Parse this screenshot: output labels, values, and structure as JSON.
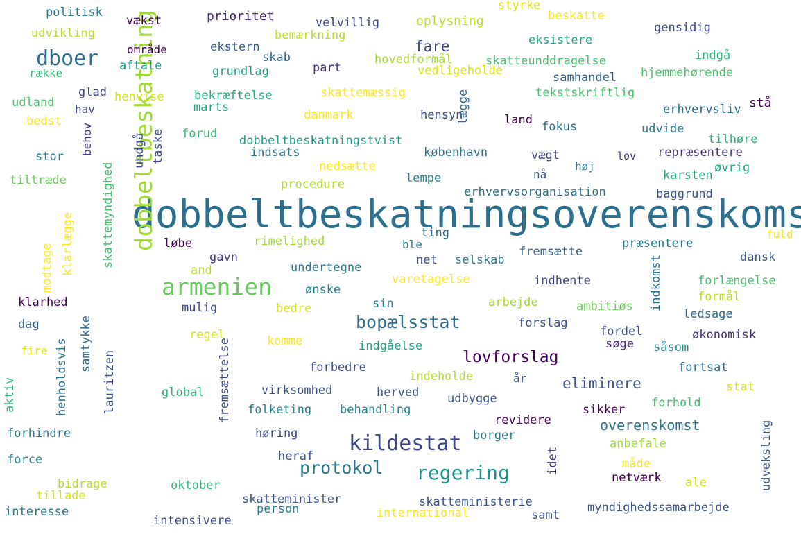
{
  "words": [
    {
      "text": "dobbeltbeskatningsoverenskomst",
      "color": "#2c6f8e"
    },
    {
      "text": "dobbeltbeskatning",
      "color": "#a2da37"
    },
    {
      "text": "armenien",
      "color": "#67cc5c"
    },
    {
      "text": "kildestat",
      "color": "#3f4889"
    },
    {
      "text": "bopælsstat",
      "color": "#2f6c8e"
    },
    {
      "text": "regering",
      "color": "#21918c"
    },
    {
      "text": "protokol",
      "color": "#2a788e"
    },
    {
      "text": "lovforslag",
      "color": "#440154"
    },
    {
      "text": "dboer",
      "color": "#2d708e"
    },
    {
      "text": "eliminere",
      "color": "#3b528b"
    },
    {
      "text": "overenskomst",
      "color": "#2c728e"
    },
    {
      "text": "fare",
      "color": "#3f4889"
    },
    {
      "text": "politisk",
      "color": "#2a788e"
    },
    {
      "text": "vækst",
      "color": "#440154"
    },
    {
      "text": "prioritet",
      "color": "#482878"
    },
    {
      "text": "velvillig",
      "color": "#3e4a89"
    },
    {
      "text": "oplysning",
      "color": "#b5de2b"
    },
    {
      "text": "styrke",
      "color": "#dde318"
    },
    {
      "text": "beskatte",
      "color": "#fde725"
    },
    {
      "text": "udvikling",
      "color": "#b5de2b"
    },
    {
      "text": "bemærkning",
      "color": "#bddf26"
    },
    {
      "text": "eksistere",
      "color": "#21a685"
    },
    {
      "text": "gensidig",
      "color": "#3e4989"
    },
    {
      "text": "område",
      "color": "#440154"
    },
    {
      "text": "ekstern",
      "color": "#365c8d"
    },
    {
      "text": "hovedformål",
      "color": "#a5db36"
    },
    {
      "text": "skatteunddragelse",
      "color": "#4ac16d"
    },
    {
      "text": "indgå",
      "color": "#35b779"
    },
    {
      "text": "række",
      "color": "#3aba76"
    },
    {
      "text": "aftale",
      "color": "#1f9e89"
    },
    {
      "text": "skab",
      "color": "#31688e"
    },
    {
      "text": "part",
      "color": "#46327e"
    },
    {
      "text": "vedligeholde",
      "color": "#dde318"
    },
    {
      "text": "samhandel",
      "color": "#355f8d"
    },
    {
      "text": "hjemmehørende",
      "color": "#4ac16d"
    },
    {
      "text": "grundlag",
      "color": "#1fa088"
    },
    {
      "text": "glad",
      "color": "#414487"
    },
    {
      "text": "henvise",
      "color": "#d8e219"
    },
    {
      "text": "bekræftelse",
      "color": "#27ad81"
    },
    {
      "text": "skattemæssig",
      "color": "#fde725"
    },
    {
      "text": "tekstskriftlig",
      "color": "#4ac16d"
    },
    {
      "text": "udland",
      "color": "#50c46a"
    },
    {
      "text": "hav",
      "color": "#3f4788"
    },
    {
      "text": "marts",
      "color": "#21a685"
    },
    {
      "text": "danmark",
      "color": "#fde725"
    },
    {
      "text": "hensyn",
      "color": "#3e4a89"
    },
    {
      "text": "erhvervsliv",
      "color": "#2e6e8e"
    },
    {
      "text": "stå",
      "color": "#440154"
    },
    {
      "text": "bedst",
      "color": "#fde725"
    },
    {
      "text": "lægge",
      "color": "#31688e"
    },
    {
      "text": "land",
      "color": "#440154"
    },
    {
      "text": "fokus",
      "color": "#2c728e"
    },
    {
      "text": "forud",
      "color": "#3aba76"
    },
    {
      "text": "udvide",
      "color": "#2a788e"
    },
    {
      "text": "dobbeltbeskatningstvist",
      "color": "#1f9e89"
    },
    {
      "text": "tilhøre",
      "color": "#26ad81"
    },
    {
      "text": "indsats",
      "color": "#2e6e8e"
    },
    {
      "text": "københavn",
      "color": "#2c728e"
    },
    {
      "text": "vægt",
      "color": "#414487"
    },
    {
      "text": "lov",
      "color": "#443a83"
    },
    {
      "text": "repræsentere",
      "color": "#45337d"
    },
    {
      "text": "stor",
      "color": "#26818e"
    },
    {
      "text": "nedsætte",
      "color": "#fde725"
    },
    {
      "text": "høj",
      "color": "#2c728e"
    },
    {
      "text": "behov",
      "color": "#443a83"
    },
    {
      "text": "nå",
      "color": "#3b528b"
    },
    {
      "text": "karsten",
      "color": "#22a884"
    },
    {
      "text": "øvrig",
      "color": "#22a884"
    },
    {
      "text": "tiltræde",
      "color": "#6ccd5a"
    },
    {
      "text": "procedure",
      "color": "#addc30"
    },
    {
      "text": "lempe",
      "color": "#26828e"
    },
    {
      "text": "erhvervsorganisation",
      "color": "#2c728e"
    },
    {
      "text": "baggrund",
      "color": "#3b528b"
    },
    {
      "text": "skattemyndighed",
      "color": "#46c06f"
    },
    {
      "text": "undgå",
      "color": "#3e4a89"
    },
    {
      "text": "taske",
      "color": "#3e4a89"
    },
    {
      "text": "klarlægge",
      "color": "#fde725"
    },
    {
      "text": "modtage",
      "color": "#fde725"
    },
    {
      "text": "fuld",
      "color": "#fde725"
    },
    {
      "text": "ting",
      "color": "#2c728e"
    },
    {
      "text": "løbe",
      "color": "#440154"
    },
    {
      "text": "rimelighed",
      "color": "#a2da37"
    },
    {
      "text": "ble",
      "color": "#26828e"
    },
    {
      "text": "fremsætte",
      "color": "#355f8d"
    },
    {
      "text": "præsentere",
      "color": "#287c8e"
    },
    {
      "text": "gavn",
      "color": "#443983"
    },
    {
      "text": "net",
      "color": "#3b528b"
    },
    {
      "text": "selskab",
      "color": "#2a788e"
    },
    {
      "text": "dansk",
      "color": "#3b528b"
    },
    {
      "text": "and",
      "color": "#b5de2b"
    },
    {
      "text": "undertegne",
      "color": "#2a788e"
    },
    {
      "text": "indkomst",
      "color": "#2c728e"
    },
    {
      "text": "varetagelse",
      "color": "#fde725"
    },
    {
      "text": "indhente",
      "color": "#3e4a89"
    },
    {
      "text": "forlængelse",
      "color": "#4ac16d"
    },
    {
      "text": "formål",
      "color": "#bddf26"
    },
    {
      "text": "ønske",
      "color": "#26828e"
    },
    {
      "text": "klarhed",
      "color": "#440154"
    },
    {
      "text": "mulig",
      "color": "#3e4a89"
    },
    {
      "text": "sin",
      "color": "#2a788e"
    },
    {
      "text": "arbejde",
      "color": "#a2da37"
    },
    {
      "text": "ambitiøs",
      "color": "#6ccd5a"
    },
    {
      "text": "bedre",
      "color": "#d8e219"
    },
    {
      "text": "ledsage",
      "color": "#31688e"
    },
    {
      "text": "dag",
      "color": "#355f8d"
    },
    {
      "text": "henholdsvis",
      "color": "#2a788e"
    },
    {
      "text": "samtykke",
      "color": "#31688e"
    },
    {
      "text": "forslag",
      "color": "#3b528b"
    },
    {
      "text": "fordel",
      "color": "#3b528b"
    },
    {
      "text": "regel",
      "color": "#d8e219"
    },
    {
      "text": "søge",
      "color": "#482878"
    },
    {
      "text": "økonomisk",
      "color": "#46337e"
    },
    {
      "text": "komme",
      "color": "#fde725"
    },
    {
      "text": "indgåelse",
      "color": "#1fa088"
    },
    {
      "text": "såsom",
      "color": "#26828e"
    },
    {
      "text": "fire",
      "color": "#dde318"
    },
    {
      "text": "lauritzen",
      "color": "#3b528b"
    },
    {
      "text": "fortsat",
      "color": "#31688e"
    },
    {
      "text": "forbedre",
      "color": "#3e4a89"
    },
    {
      "text": "indeholde",
      "color": "#b5de2b"
    },
    {
      "text": "aktiv",
      "color": "#35b779"
    },
    {
      "text": "fremsættelse",
      "color": "#3e4a89"
    },
    {
      "text": "år",
      "color": "#3b528b"
    },
    {
      "text": "stat",
      "color": "#d8e219"
    },
    {
      "text": "global",
      "color": "#35b779"
    },
    {
      "text": "virksomhed",
      "color": "#3b528b"
    },
    {
      "text": "herved",
      "color": "#3b528b"
    },
    {
      "text": "udbygge",
      "color": "#3b528b"
    },
    {
      "text": "forhold",
      "color": "#46c06f"
    },
    {
      "text": "folketing",
      "color": "#26828e"
    },
    {
      "text": "behandling",
      "color": "#26828e"
    },
    {
      "text": "sikker",
      "color": "#440154"
    },
    {
      "text": "udveksling",
      "color": "#39568c"
    },
    {
      "text": "revidere",
      "color": "#440154"
    },
    {
      "text": "forhindre",
      "color": "#2a788e"
    },
    {
      "text": "høring",
      "color": "#3e4a89"
    },
    {
      "text": "borger",
      "color": "#2a788e"
    },
    {
      "text": "anbefale",
      "color": "#a2da37"
    },
    {
      "text": "force",
      "color": "#26828e"
    },
    {
      "text": "heraf",
      "color": "#3b528b"
    },
    {
      "text": "idet",
      "color": "#443983"
    },
    {
      "text": "måde",
      "color": "#fde725"
    },
    {
      "text": "bidrage",
      "color": "#b5de2b"
    },
    {
      "text": "oktober",
      "color": "#35b779"
    },
    {
      "text": "netværk",
      "color": "#440154"
    },
    {
      "text": "ale",
      "color": "#d8e219"
    },
    {
      "text": "tillade",
      "color": "#d8e219"
    },
    {
      "text": "skatteminister",
      "color": "#3b528b"
    },
    {
      "text": "skatteministerie",
      "color": "#3b528b"
    },
    {
      "text": "interesse",
      "color": "#2a788e"
    },
    {
      "text": "intensivere",
      "color": "#3e4a89"
    },
    {
      "text": "person",
      "color": "#2a788e"
    },
    {
      "text": "international",
      "color": "#fde725"
    },
    {
      "text": "samt",
      "color": "#3b528b"
    },
    {
      "text": "myndighedssamarbejde",
      "color": "#3b528b"
    }
  ]
}
